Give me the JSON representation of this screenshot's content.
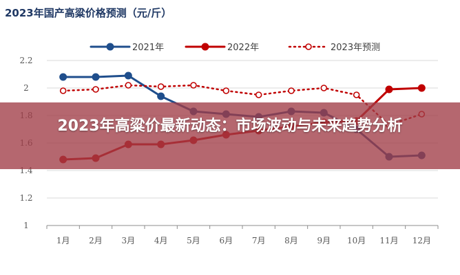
{
  "overlay": {
    "headline": "2023年高粱价最新动态：市场波动与未来趋势分析"
  },
  "chart_data": {
    "type": "line",
    "title": "2023年国产高粱价格预测（元/斤）",
    "categories": [
      "1月",
      "2月",
      "3月",
      "4月",
      "5月",
      "6月",
      "7月",
      "8月",
      "9月",
      "10月",
      "11月",
      "12月"
    ],
    "ylim": [
      1,
      2.2
    ],
    "yticks": [
      "1",
      "1.2",
      "1.4",
      "1.6",
      "1.8",
      "2",
      "2.2"
    ],
    "grid": "horizontal",
    "legend_position": "top",
    "series": [
      {
        "name": "2021年",
        "color": "#1f4e8c",
        "style": "solid",
        "values": [
          2.08,
          2.08,
          2.09,
          1.94,
          1.83,
          1.81,
          1.79,
          1.83,
          1.82,
          1.7,
          1.5,
          1.51
        ]
      },
      {
        "name": "2022年",
        "color": "#c00000",
        "style": "solid",
        "values": [
          1.48,
          1.49,
          1.59,
          1.59,
          1.62,
          1.66,
          1.69,
          1.72,
          1.75,
          1.76,
          1.99,
          2.0
        ]
      },
      {
        "name": "2023年预测",
        "color": "#c00000",
        "style": "dotted",
        "values": [
          1.98,
          1.99,
          2.02,
          2.01,
          2.02,
          1.98,
          1.95,
          1.98,
          2.0,
          1.95,
          1.73,
          1.81
        ]
      }
    ]
  }
}
